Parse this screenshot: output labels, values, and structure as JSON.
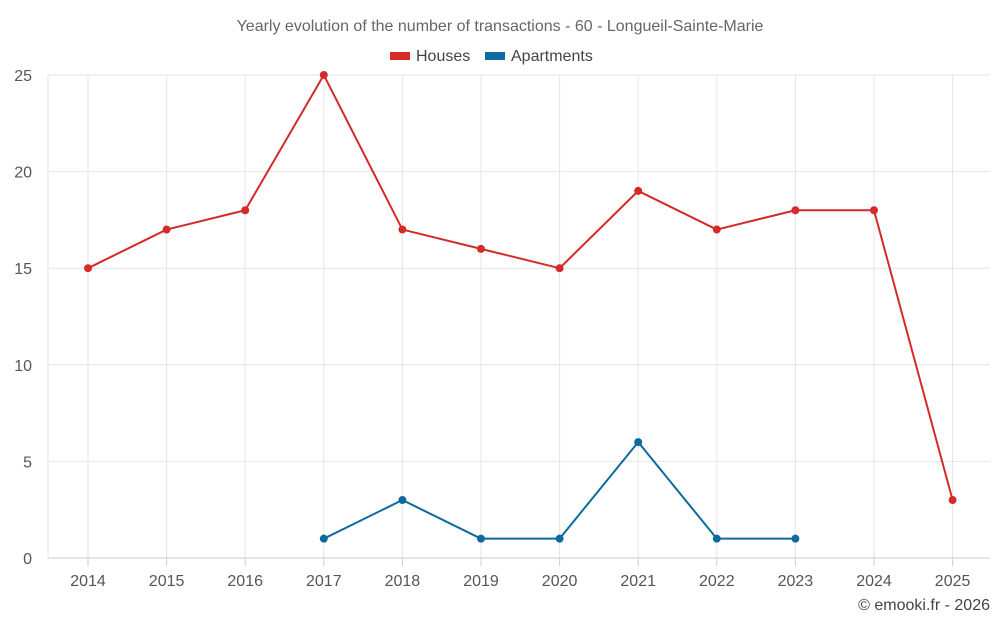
{
  "chart_data": {
    "type": "line",
    "title": "Yearly evolution of the number of transactions - 60 - Longueil-Sainte-Marie",
    "x": [
      "2014",
      "2015",
      "2016",
      "2017",
      "2018",
      "2019",
      "2020",
      "2021",
      "2022",
      "2023",
      "2024",
      "2025"
    ],
    "series": [
      {
        "name": "Houses",
        "color": "#d42a2a",
        "values": [
          15,
          17,
          18,
          25,
          17,
          16,
          15,
          19,
          17,
          18,
          18,
          3
        ]
      },
      {
        "name": "Apartments",
        "color": "#0d6a9e",
        "values": [
          null,
          null,
          null,
          1,
          3,
          1,
          1,
          6,
          1,
          1,
          null,
          null
        ]
      }
    ],
    "ylim": [
      0,
      25
    ],
    "yticks": [
      "0",
      "5",
      "10",
      "15",
      "20",
      "25"
    ],
    "xlabel": "",
    "ylabel": "",
    "grid": true,
    "legend_position": "top-center"
  },
  "credit": "© emooki.fr - 2026"
}
